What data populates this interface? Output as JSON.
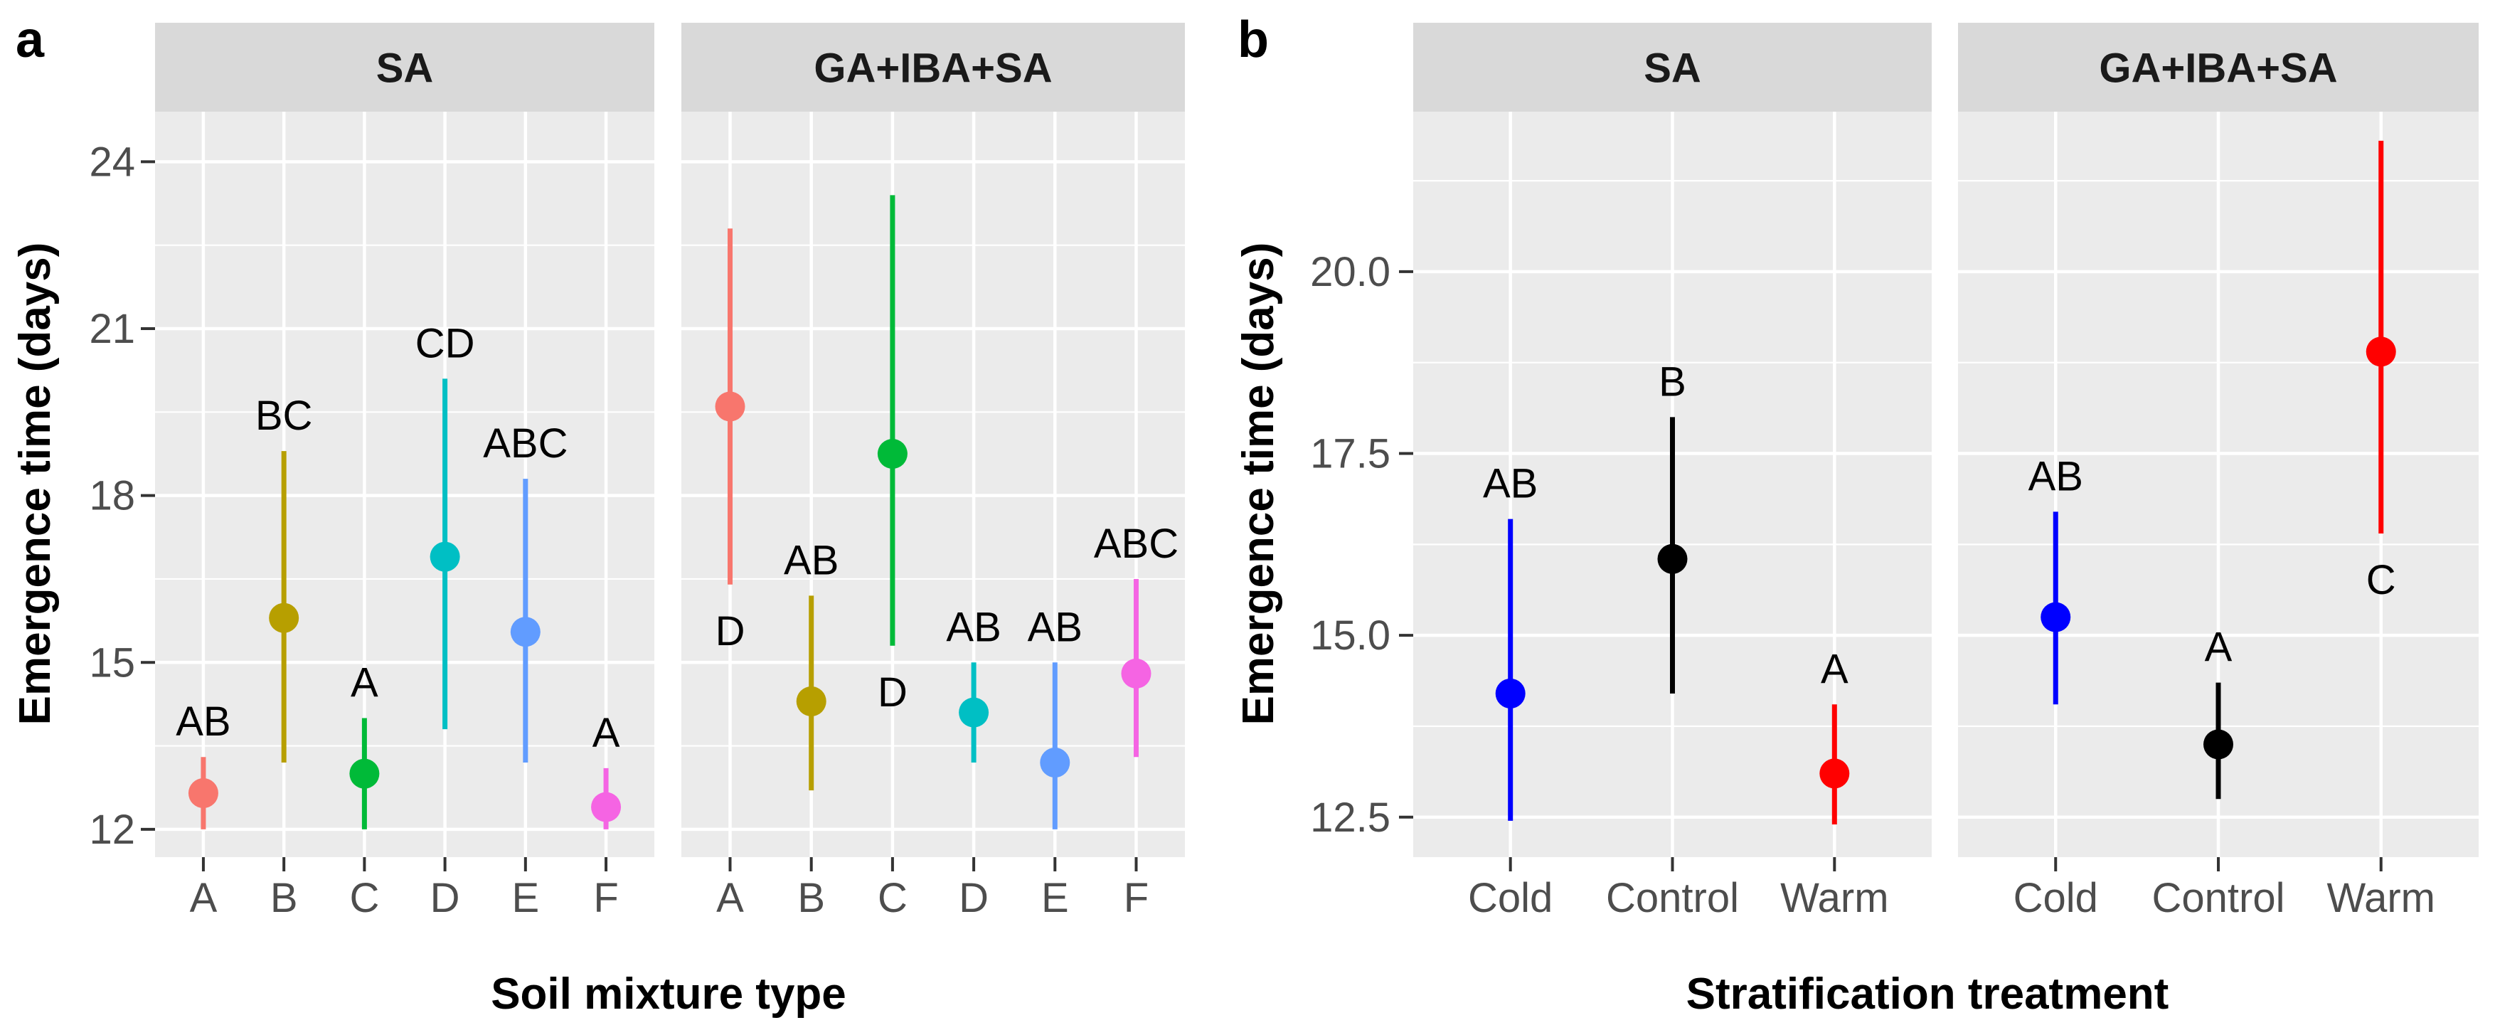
{
  "chart_data": [
    {
      "type": "pointrange",
      "panel_label": "a",
      "xlabel": "Soil mixture type",
      "ylabel": "Emergence time (days)",
      "ylim": [
        11.5,
        24.9
      ],
      "yticks": [
        12,
        15,
        18,
        21,
        24
      ],
      "ytick_labels": [
        "12",
        "15",
        "18",
        "21",
        "24"
      ],
      "categories": [
        "A",
        "B",
        "C",
        "D",
        "E",
        "F"
      ],
      "colors": [
        "#F8766D",
        "#B79F00",
        "#00BA38",
        "#00BFC4",
        "#619CFF",
        "#F564E3"
      ],
      "facets": [
        {
          "strip": "SA",
          "points": [
            {
              "x": "A",
              "mean": 12.65,
              "low": 12.0,
              "high": 13.3,
              "letter": "AB",
              "letter_pos": "above"
            },
            {
              "x": "B",
              "mean": 15.8,
              "low": 13.2,
              "high": 18.8,
              "letter": "BC",
              "letter_pos": "above"
            },
            {
              "x": "C",
              "mean": 13.0,
              "low": 12.0,
              "high": 14.0,
              "letter": "A",
              "letter_pos": "above"
            },
            {
              "x": "D",
              "mean": 16.9,
              "low": 13.8,
              "high": 20.1,
              "letter": "CD",
              "letter_pos": "above"
            },
            {
              "x": "E",
              "mean": 15.55,
              "low": 13.2,
              "high": 18.3,
              "letter": "ABC",
              "letter_pos": "above"
            },
            {
              "x": "F",
              "mean": 12.4,
              "low": 12.0,
              "high": 13.1,
              "letter": "A",
              "letter_pos": "above"
            }
          ]
        },
        {
          "strip": "GA+IBA+SA",
          "points": [
            {
              "x": "A",
              "mean": 19.6,
              "low": 16.4,
              "high": 22.8,
              "letter": "D",
              "letter_pos": "below"
            },
            {
              "x": "B",
              "mean": 14.3,
              "low": 12.7,
              "high": 16.2,
              "letter": "AB",
              "letter_pos": "above"
            },
            {
              "x": "C",
              "mean": 18.75,
              "low": 15.3,
              "high": 23.4,
              "letter": "D",
              "letter_pos": "below"
            },
            {
              "x": "D",
              "mean": 14.1,
              "low": 13.2,
              "high": 15.0,
              "letter": "AB",
              "letter_pos": "above"
            },
            {
              "x": "E",
              "mean": 13.2,
              "low": 12.0,
              "high": 15.0,
              "letter": "AB",
              "letter_pos": "above"
            },
            {
              "x": "F",
              "mean": 14.8,
              "low": 13.3,
              "high": 16.5,
              "letter": "ABC",
              "letter_pos": "above"
            }
          ]
        }
      ]
    },
    {
      "type": "pointrange",
      "panel_label": "b",
      "xlabel": "Stratification treatment",
      "ylabel": "Emergence time (days)",
      "ylim": [
        11.95,
        22.2
      ],
      "yticks": [
        12.5,
        15.0,
        17.5,
        20.0
      ],
      "ytick_labels": [
        "12.5",
        "15.0",
        "17.5",
        "20.0"
      ],
      "categories": [
        "Cold",
        "Control",
        "Warm"
      ],
      "colors": [
        "#0000FF",
        "#000000",
        "#FF0000"
      ],
      "facets": [
        {
          "strip": "SA",
          "points": [
            {
              "x": "Cold",
              "mean": 14.2,
              "low": 12.45,
              "high": 16.6,
              "letter": "AB",
              "letter_pos": "above"
            },
            {
              "x": "Control",
              "mean": 16.05,
              "low": 14.2,
              "high": 18.0,
              "letter": "B",
              "letter_pos": "above"
            },
            {
              "x": "Warm",
              "mean": 13.1,
              "low": 12.4,
              "high": 14.05,
              "letter": "A",
              "letter_pos": "above"
            }
          ]
        },
        {
          "strip": "GA+IBA+SA",
          "points": [
            {
              "x": "Cold",
              "mean": 15.25,
              "low": 14.05,
              "high": 16.7,
              "letter": "AB",
              "letter_pos": "above"
            },
            {
              "x": "Control",
              "mean": 13.5,
              "low": 12.75,
              "high": 14.35,
              "letter": "A",
              "letter_pos": "above"
            },
            {
              "x": "Warm",
              "mean": 18.9,
              "low": 16.4,
              "high": 21.8,
              "letter": "C",
              "letter_pos": "below"
            }
          ]
        }
      ]
    }
  ]
}
